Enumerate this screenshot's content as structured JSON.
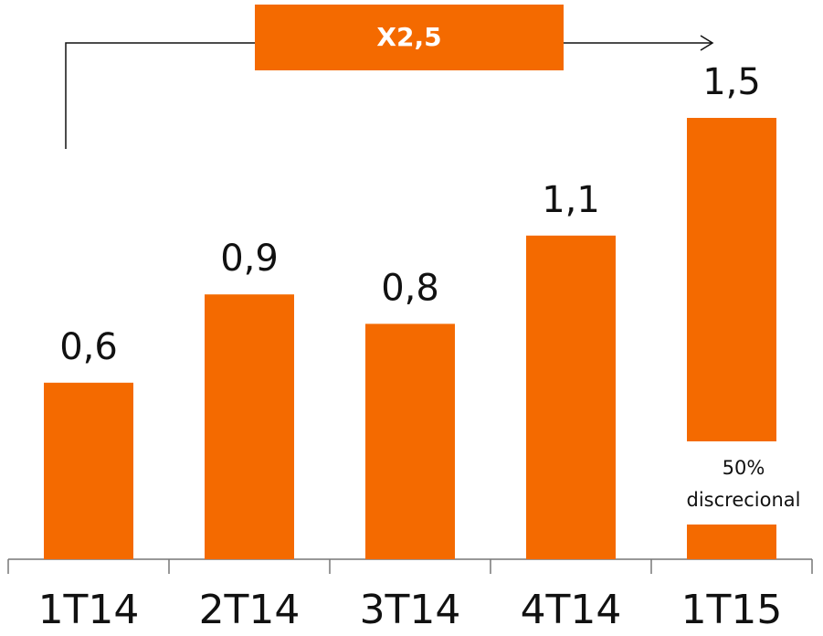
{
  "chart_data": {
    "type": "bar",
    "categories": [
      "1T14",
      "2T14",
      "3T14",
      "4T14",
      "1T15"
    ],
    "values": [
      0.6,
      0.9,
      0.8,
      1.1,
      1.5
    ],
    "value_labels": [
      "0,6",
      "0,9",
      "0,8",
      "1,1",
      "1,5"
    ],
    "color": "#f46a00",
    "growth_label": "X2,5",
    "bar_note": [
      "50%",
      "discrecional"
    ]
  }
}
